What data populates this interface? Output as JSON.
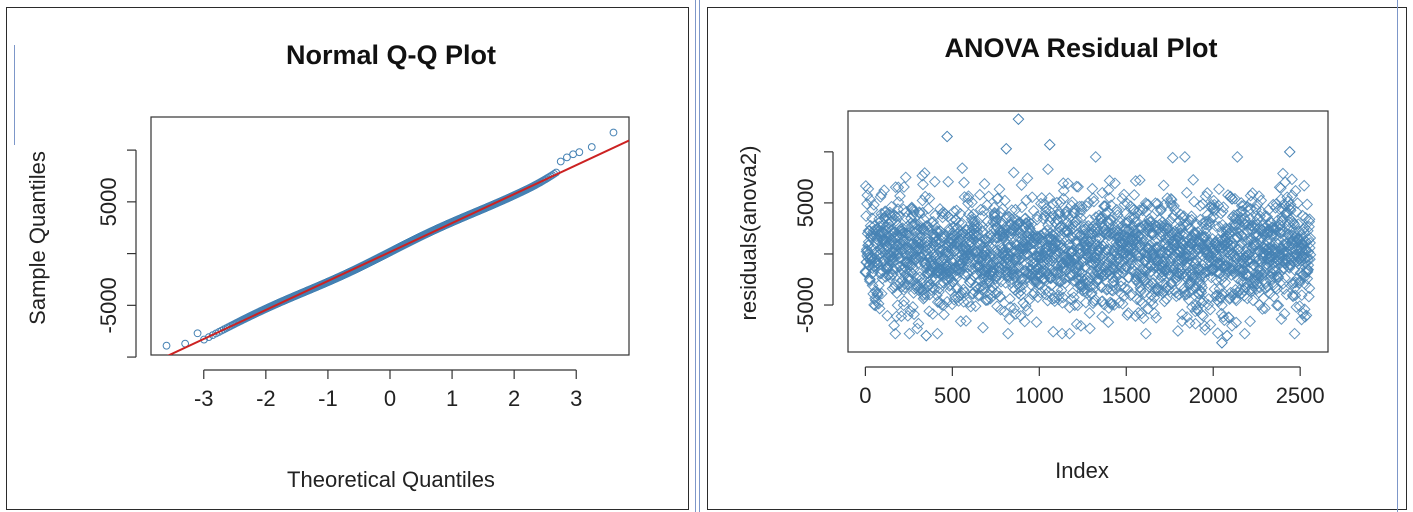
{
  "chart_data": [
    {
      "type": "scatter",
      "title": "Normal Q-Q Plot",
      "xlabel": "Theoretical Quantiles",
      "ylabel": "Sample Quantiles",
      "xlim": [
        -3.85,
        3.85
      ],
      "ylim": [
        -9800,
        13200
      ],
      "xticks": [
        -3,
        -2,
        -1,
        0,
        1,
        2,
        3
      ],
      "xtick_labels": [
        "-3",
        "-2",
        "-1",
        "0",
        "1",
        "2",
        "3"
      ],
      "yticks": [
        -5000,
        5000
      ],
      "ytick_labels": [
        "-5000",
        "5000"
      ],
      "yminor_ticks": [
        -10000,
        0,
        10000
      ],
      "n_points": 2560,
      "reference_line": {
        "intercept": 150,
        "slope": 2800
      },
      "upper_tail_points": [
        {
          "x": 2.75,
          "y": 8900
        },
        {
          "x": 2.85,
          "y": 9300
        },
        {
          "x": 2.95,
          "y": 9600
        },
        {
          "x": 3.05,
          "y": 9800
        },
        {
          "x": 3.25,
          "y": 10300
        },
        {
          "x": 3.6,
          "y": 11700
        }
      ],
      "lower_tail_points": [
        {
          "x": -3.6,
          "y": -8900
        },
        {
          "x": -3.3,
          "y": -8700
        },
        {
          "x": -3.1,
          "y": -7700
        }
      ],
      "point_color": "#4682b4",
      "line_color": "#cc2222",
      "grid": false,
      "legend": "none"
    },
    {
      "type": "scatter",
      "title": "ANOVA Residual Plot",
      "xlabel": "Index",
      "ylabel": "residuals(anova2)",
      "xlim": [
        -100,
        2660
      ],
      "ylim": [
        -9600,
        14000
      ],
      "xticks": [
        0,
        500,
        1000,
        1500,
        2000,
        2500
      ],
      "xtick_labels": [
        "0",
        "500",
        "1000",
        "1500",
        "2000",
        "2500"
      ],
      "yticks": [
        -5000,
        5000
      ],
      "ytick_labels": [
        "-5000",
        "5000"
      ],
      "yminor_ticks": [
        0,
        10000
      ],
      "n_points": 2560,
      "marker": "open-diamond",
      "notable_points": [
        {
          "x": 880,
          "y": 13200
        },
        {
          "x": 470,
          "y": 11500
        },
        {
          "x": 1060,
          "y": 10700
        },
        {
          "x": 810,
          "y": 10300
        },
        {
          "x": 2440,
          "y": 10000
        },
        {
          "x": 2050,
          "y": -8700
        },
        {
          "x": 2080,
          "y": -8000
        },
        {
          "x": 350,
          "y": -8000
        }
      ],
      "point_color": "#4682b4",
      "grid": false,
      "legend": "none"
    }
  ]
}
